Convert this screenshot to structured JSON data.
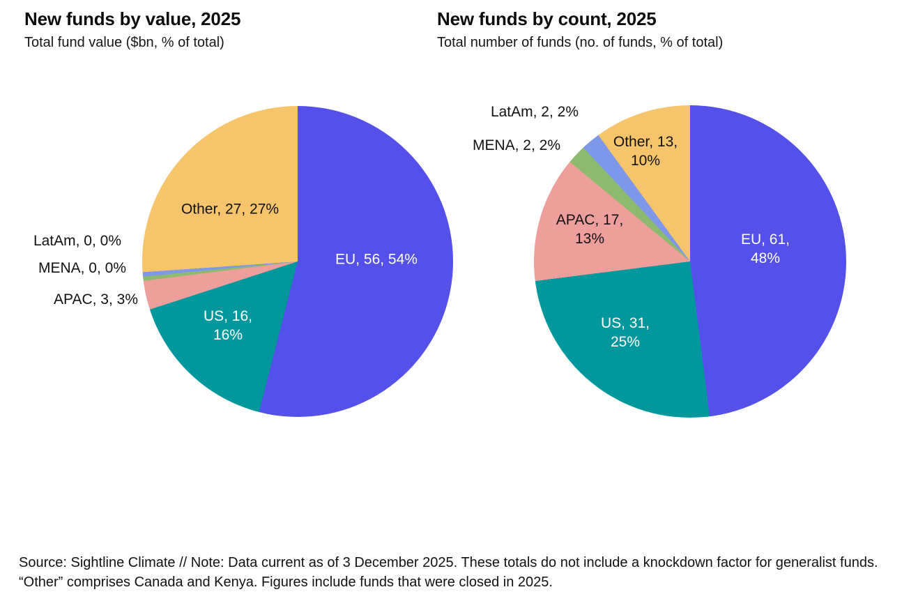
{
  "page": {
    "background": "#ffffff"
  },
  "chart_data": [
    {
      "type": "pie",
      "title": "New funds by value, 2025",
      "subtitle": "Total fund value ($bn, % of total)",
      "legend_position": "labels-on-chart",
      "label_format": "name, value, percent",
      "slices": [
        {
          "label": "EU",
          "value": 56,
          "pct": 54,
          "color": "#5351e9",
          "label_placement": "inside",
          "label_color": "#ffffff"
        },
        {
          "label": "US",
          "value": 16,
          "pct": 16,
          "color": "#00989c",
          "label_placement": "inside",
          "label_color": "#ffffff"
        },
        {
          "label": "APAC",
          "value": 3,
          "pct": 3,
          "color": "#ef9f9b",
          "label_placement": "outside",
          "label_color": "#111111"
        },
        {
          "label": "MENA",
          "value": 0,
          "pct": 0,
          "color": "#8eba70",
          "label_placement": "outside",
          "label_color": "#111111"
        },
        {
          "label": "LatAm",
          "value": 0,
          "pct": 0,
          "color": "#7e97e8",
          "label_placement": "outside",
          "label_color": "#111111"
        },
        {
          "label": "Other",
          "value": 27,
          "pct": 27,
          "color": "#f6c46a",
          "label_placement": "inside",
          "label_color": "#111111"
        }
      ]
    },
    {
      "type": "pie",
      "title": "New funds by count, 2025",
      "subtitle": "Total number of funds (no. of funds, % of total)",
      "legend_position": "labels-on-chart",
      "label_format": "name, value, percent",
      "slices": [
        {
          "label": "EU",
          "value": 61,
          "pct": 48,
          "color": "#5351e9",
          "label_placement": "inside",
          "label_color": "#ffffff"
        },
        {
          "label": "US",
          "value": 31,
          "pct": 25,
          "color": "#00989c",
          "label_placement": "inside",
          "label_color": "#ffffff"
        },
        {
          "label": "APAC",
          "value": 17,
          "pct": 13,
          "color": "#ef9f9b",
          "label_placement": "inside",
          "label_color": "#111111"
        },
        {
          "label": "MENA",
          "value": 2,
          "pct": 2,
          "color": "#8eba70",
          "label_placement": "outside",
          "label_color": "#111111"
        },
        {
          "label": "LatAm",
          "value": 2,
          "pct": 2,
          "color": "#7e97e8",
          "label_placement": "outside",
          "label_color": "#111111"
        },
        {
          "label": "Other",
          "value": 13,
          "pct": 10,
          "color": "#f6c46a",
          "label_placement": "inside",
          "label_color": "#111111"
        }
      ]
    }
  ],
  "footer": {
    "text": "Source: Sightline Climate  //  Note: Data current as of 3 December 2025. These totals do not include a knockdown factor for generalist funds. “Other” comprises Canada and Kenya. Figures include funds that were closed in 2025."
  }
}
